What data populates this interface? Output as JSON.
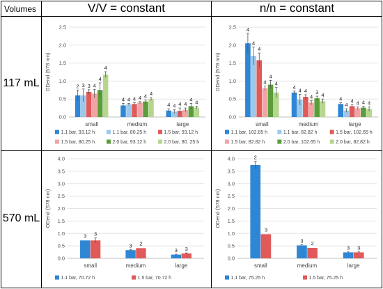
{
  "table": {
    "corner_label": "Volumes",
    "column_headers": [
      "V/V = constant",
      "n/n = constant"
    ],
    "row_headers": [
      "117 mL",
      "570 mL"
    ]
  },
  "chart_data": [
    {
      "id": "117-vv",
      "type": "bar",
      "ylabel": "ODend (578 nm)",
      "xlabel": "",
      "ylim": [
        0,
        2.5
      ],
      "yticks": [
        "0.0",
        "0.5",
        "1.0",
        "1.5",
        "2.0",
        "2.5"
      ],
      "categories": [
        "small",
        "medium",
        "large"
      ],
      "series": [
        {
          "name": "1.1 bar, 93.12 h",
          "color": "#2e86d4",
          "values": [
            0.6,
            0.32,
            0.18
          ],
          "errors": [
            0.15,
            0.06,
            0.05
          ],
          "labels": [
            "2",
            "4",
            "4"
          ]
        },
        {
          "name": "1.1 bar, 80.25 h",
          "color": "#9cc8ea",
          "values": [
            0.6,
            0.35,
            0.15
          ],
          "errors": [
            0.18,
            0.03,
            0.05
          ],
          "labels": [
            "3",
            "4",
            "4"
          ]
        },
        {
          "name": "1.5 bar, 93.12 h",
          "color": "#e05a5a",
          "values": [
            0.7,
            0.36,
            0.17
          ],
          "errors": [
            0.06,
            0.04,
            0.08
          ],
          "labels": [
            "3",
            "4",
            "4"
          ]
        },
        {
          "name": "1.5 bar, 80.25 h",
          "color": "#f1a4a4",
          "values": [
            0.65,
            0.4,
            0.2
          ],
          "errors": [
            0.12,
            0.03,
            0.05
          ],
          "labels": [
            "4",
            "4",
            "4"
          ]
        },
        {
          "name": "2.0 bar, 93.12 h",
          "color": "#5a9e3a",
          "values": [
            0.75,
            0.43,
            0.3
          ],
          "errors": [
            0.2,
            0.04,
            0.08
          ],
          "labels": [
            "4",
            "4",
            "4"
          ]
        },
        {
          "name": "2.0 bar, 80. 25 h",
          "color": "#b6d68e",
          "values": [
            1.18,
            0.5,
            0.26
          ],
          "errors": [
            0.08,
            0.04,
            0.04
          ],
          "labels": [
            "4",
            "4",
            "4"
          ]
        }
      ],
      "legend_rows": [
        [
          "1.1 bar, 93.12 h",
          "1.1 bar, 80.25 h",
          "1.5 bar, 93.12 h"
        ],
        [
          "1.5 bar, 80.25 h",
          "2.0 bar, 93.12 h",
          "2.0 bar, 80. 25 h"
        ]
      ]
    },
    {
      "id": "117-nn",
      "type": "bar",
      "ylabel": "ODend (578 nm)",
      "xlabel": "",
      "ylim": [
        0,
        2.5
      ],
      "yticks": [
        "0.0",
        "0.5",
        "1.0",
        "1.5",
        "2.0",
        "2.5"
      ],
      "categories": [
        "small",
        "medium",
        "large"
      ],
      "series": [
        {
          "name": "1.1 bar, 102.65 h",
          "color": "#2e86d4",
          "values": [
            2.05,
            0.68,
            0.36
          ],
          "errors": [
            0.28,
            0.04,
            0.04
          ],
          "labels": [
            "4",
            "4",
            "4"
          ]
        },
        {
          "name": "1.1 bar, 82.82 h",
          "color": "#9cc8ea",
          "values": [
            1.7,
            0.48,
            0.18
          ],
          "errors": [
            0.25,
            0.15,
            0.05
          ],
          "labels": [
            "4",
            "4",
            "4"
          ]
        },
        {
          "name": "1.5 bar, 102.65 h",
          "color": "#e05a5a",
          "values": [
            1.58,
            0.56,
            0.3
          ],
          "errors": [
            0.2,
            0.06,
            0.04
          ],
          "labels": [
            "4",
            "4",
            "4"
          ]
        },
        {
          "name": "1.5 bar, 82.82 h",
          "color": "#f1a4a4",
          "values": [
            0.8,
            0.4,
            0.24
          ],
          "errors": [
            0.06,
            0.06,
            0.04
          ],
          "labels": [
            "4",
            "4",
            "4"
          ]
        },
        {
          "name": "2.0 bar, 102.65 h",
          "color": "#5a9e3a",
          "values": [
            0.9,
            0.52,
            0.26
          ],
          "errors": [
            0.12,
            0.06,
            0.04
          ],
          "labels": [
            "4",
            "3",
            "4"
          ]
        },
        {
          "name": "2.0 bar, 82.82 h",
          "color": "#b6d68e",
          "values": [
            0.68,
            0.44,
            0.22
          ],
          "errors": [
            0.14,
            0.06,
            0.06
          ],
          "labels": [
            "4",
            "4",
            "4"
          ]
        }
      ],
      "legend_rows": [
        [
          "1.1 bar, 102.65 h",
          "1.1 bar, 82.82 h",
          "1.5 bar, 102.65 h"
        ],
        [
          "1.5 bar, 82.82 h",
          "2.0 bar, 102.65 h",
          "2.0 bar, 82.82 h"
        ]
      ]
    },
    {
      "id": "570-vv",
      "type": "bar",
      "ylabel": "ODend (578 nm)",
      "xlabel": "",
      "ylim": [
        0,
        4.0
      ],
      "yticks": [
        "0.0",
        "0.5",
        "1.0",
        "1.5",
        "2.0",
        "2.5",
        "3.0",
        "3.5",
        "4.0"
      ],
      "categories": [
        "small",
        "medium",
        "large"
      ],
      "series": [
        {
          "name": "1.1 bar, 70.72 h",
          "color": "#2e86d4",
          "values": [
            0.72,
            0.33,
            0.15
          ],
          "errors": [
            0.0,
            0.02,
            0.02
          ],
          "labels": [
            "3",
            "3",
            "3"
          ]
        },
        {
          "name": "1.5 bar, 70.72 h",
          "color": "#e05a5a",
          "values": [
            0.72,
            0.41,
            0.2
          ],
          "errors": [
            0.1,
            0.0,
            0.02
          ],
          "labels": [
            "3",
            "2",
            "3"
          ]
        }
      ],
      "legend_rows": [
        [
          "1.1 bar, 70.72 h",
          "1.5 bar, 70.72 h"
        ]
      ]
    },
    {
      "id": "570-nn",
      "type": "bar",
      "ylabel": "ODend (578 nm)",
      "xlabel": "",
      "ylim": [
        0,
        4.0
      ],
      "yticks": [
        "0.0",
        "0.5",
        "1.0",
        "1.5",
        "2.0",
        "2.5",
        "3.0",
        "3.5",
        "4.0"
      ],
      "categories": [
        "small",
        "medium",
        "large"
      ],
      "series": [
        {
          "name": "1.1 bar, 75.25 h",
          "color": "#2e86d4",
          "values": [
            3.75,
            0.52,
            0.24
          ],
          "errors": [
            0.15,
            0.03,
            0.02
          ],
          "labels": [
            "2",
            "3",
            "3"
          ]
        },
        {
          "name": "1.5 bar, 75.25 h",
          "color": "#e05a5a",
          "values": [
            0.97,
            0.42,
            0.24
          ],
          "errors": [
            0.0,
            0.0,
            0.02
          ],
          "labels": [
            "3",
            "2",
            "3"
          ]
        }
      ],
      "legend_rows": [
        [
          "1.1 bar, 75.25 h",
          "1.5 bar, 75.25 h"
        ]
      ]
    }
  ]
}
